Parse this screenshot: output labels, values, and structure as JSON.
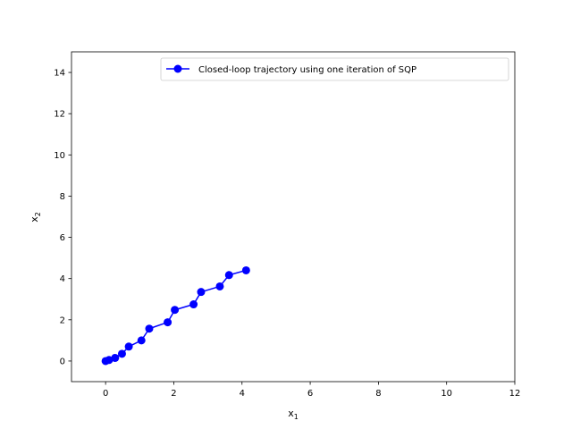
{
  "chart_data": {
    "type": "line",
    "xlim": [
      -1,
      12
    ],
    "ylim": [
      -1,
      15
    ],
    "xticks": [
      0,
      2,
      4,
      6,
      8,
      10,
      12
    ],
    "yticks": [
      0,
      2,
      4,
      6,
      8,
      10,
      12,
      14
    ],
    "xlabel": {
      "base": "x",
      "sub": "1"
    },
    "ylabel": {
      "base": "x",
      "sub": "2"
    },
    "legend_position": "upper right",
    "grid": false,
    "series": [
      {
        "name": "Closed-loop trajectory using one iteration of SQP",
        "color": "#0000ff",
        "marker": "circle",
        "x": [
          0.0,
          0.1,
          0.28,
          0.48,
          0.68,
          1.05,
          1.28,
          1.82,
          2.03,
          2.58,
          2.8,
          3.35,
          3.62,
          4.12
        ],
        "y": [
          0.0,
          0.05,
          0.15,
          0.35,
          0.7,
          1.0,
          1.57,
          1.88,
          2.48,
          2.75,
          3.35,
          3.62,
          4.17,
          4.4
        ]
      }
    ]
  }
}
